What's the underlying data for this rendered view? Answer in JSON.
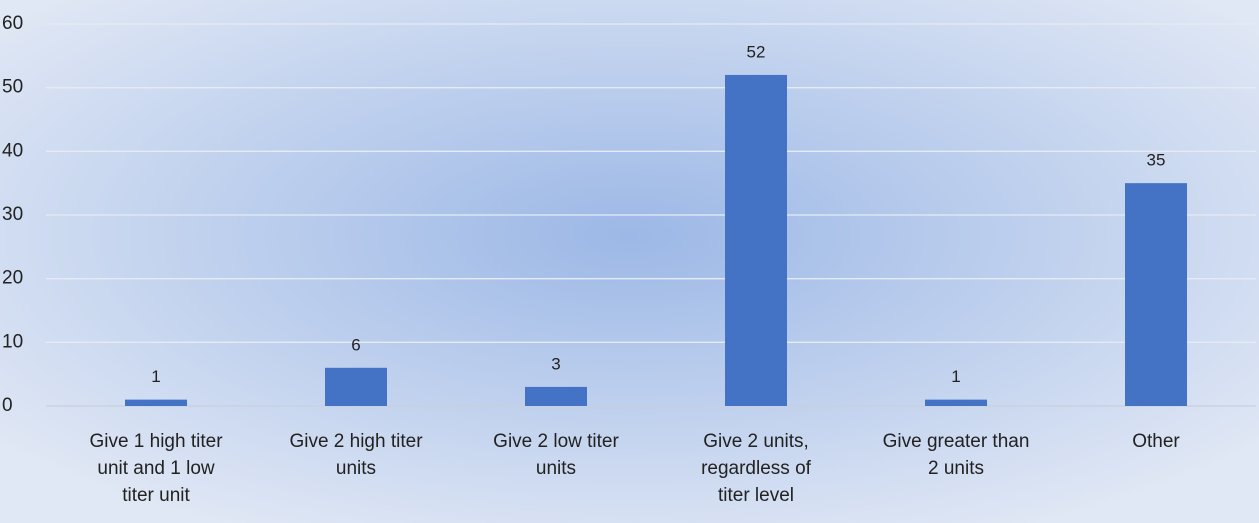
{
  "chart_data": {
    "type": "bar",
    "categories": [
      "Give 1 high titer unit and 1 low titer unit",
      "Give 2 high titer units",
      "Give 2 low titer units",
      "Give 2 units, regardless of titer level",
      "Give greater than 2 units",
      "Other"
    ],
    "values": [
      1,
      6,
      3,
      52,
      1,
      35
    ],
    "color": "#4472c4",
    "ylim": [
      0,
      60
    ],
    "yticks": [
      0,
      10,
      20,
      30,
      40,
      50,
      60
    ],
    "grid": true,
    "data_labels": true
  }
}
